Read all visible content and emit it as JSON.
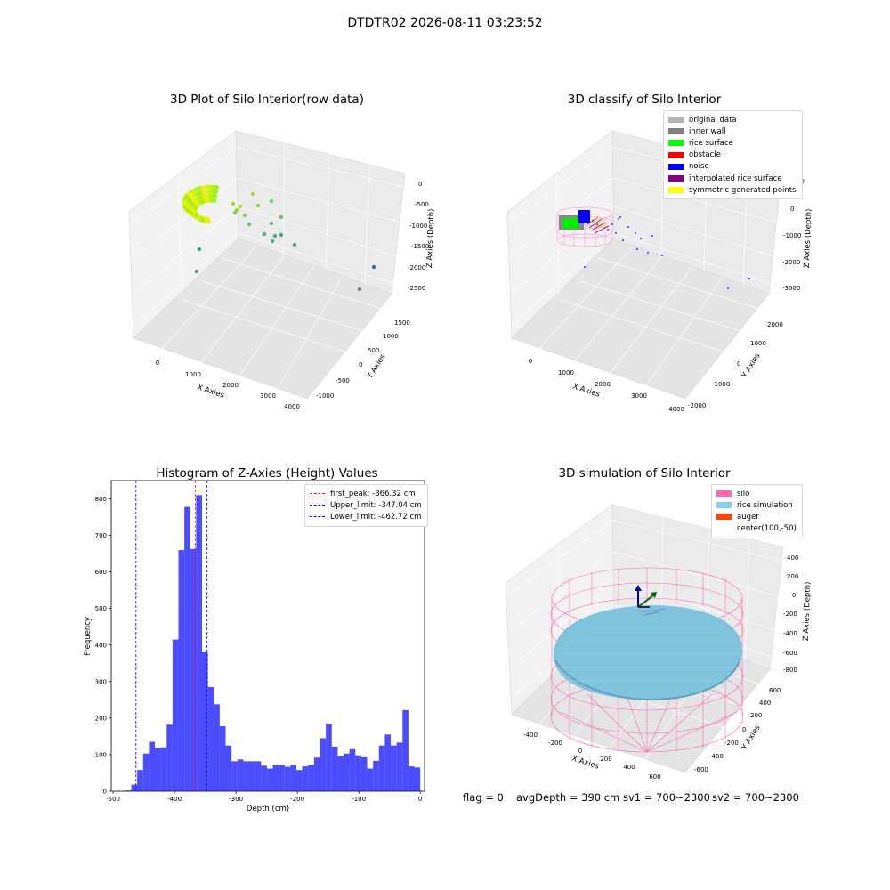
{
  "suptitle": "DTDTR02 2026-08-11 03:23:52",
  "chart_data": [
    {
      "type": "scatter",
      "title": "3D Plot of Silo Interior(row data)",
      "xlabel": "X Axies",
      "ylabel": "Y Axies",
      "zlabel": "Z Axies (Depth)",
      "x_ticks": [
        "0",
        "1000",
        "2000",
        "3000",
        "4000"
      ],
      "y_ticks": [
        "-1000",
        "-500",
        "0",
        "500",
        "1000",
        "1500"
      ],
      "z_ticks": [
        "0",
        "-500",
        "-1000",
        "-1500",
        "-2000",
        "-2500"
      ],
      "colormap": "viridis",
      "points": [
        {
          "x": 700,
          "y": 900,
          "z": -1050
        },
        {
          "x": 1100,
          "y": 1100,
          "z": -700
        },
        {
          "x": 1400,
          "y": 1200,
          "z": -900
        },
        {
          "x": 1600,
          "y": 1300,
          "z": -1100
        },
        {
          "x": 1800,
          "y": 1400,
          "z": -1300
        },
        {
          "x": 2000,
          "y": 1500,
          "z": -1400
        },
        {
          "x": 2200,
          "y": 1600,
          "z": -1500
        },
        {
          "x": 2300,
          "y": 1700,
          "z": -1700
        },
        {
          "x": 300,
          "y": 400,
          "z": -2000
        },
        {
          "x": 500,
          "y": 300,
          "z": -2400
        },
        {
          "x": 3900,
          "y": 900,
          "z": -2000
        },
        {
          "x": 3700,
          "y": 500,
          "z": -2700
        }
      ]
    },
    {
      "type": "scatter",
      "title": "3D classify of Silo Interior",
      "xlabel": "X Axies",
      "ylabel": "Y Axies",
      "zlabel": "Z Axies (Depth)",
      "x_ticks": [
        "0",
        "1000",
        "2000",
        "3000",
        "4000"
      ],
      "y_ticks": [
        "-2000",
        "-1000",
        "0",
        "1000",
        "2000"
      ],
      "z_ticks": [
        "1000",
        "0",
        "-1000",
        "-2000",
        "-3000"
      ],
      "legend": [
        {
          "label": "original data",
          "color": "#b3b3b3"
        },
        {
          "label": "inner wall",
          "color": "#808080"
        },
        {
          "label": "rice surface",
          "color": "#00ff00"
        },
        {
          "label": "obstacle",
          "color": "#ff0000"
        },
        {
          "label": "noise",
          "color": "#0000ff"
        },
        {
          "label": "interpolated rice surface",
          "color": "#800080"
        },
        {
          "label": "symmetric generated points",
          "color": "#ffff00"
        }
      ]
    },
    {
      "type": "bar",
      "title": "Histogram of Z-Axies (Height) Values",
      "xlabel": "Depth (cm)",
      "ylabel": "Frequency",
      "xlim": [
        -503,
        7
      ],
      "ylim": [
        0,
        850
      ],
      "x_ticks": [
        -500,
        -400,
        -300,
        -200,
        -100,
        0
      ],
      "y_ticks": [
        0,
        100,
        200,
        300,
        400,
        500,
        600,
        700,
        800
      ],
      "bin_start": -480,
      "bin_width": 9.6,
      "values": [
        2,
        18,
        58,
        103,
        135,
        118,
        120,
        182,
        415,
        660,
        778,
        663,
        810,
        380,
        285,
        238,
        178,
        125,
        82,
        87,
        82,
        82,
        82,
        70,
        62,
        72,
        72,
        67,
        72,
        58,
        68,
        72,
        92,
        145,
        185,
        122,
        95,
        103,
        115,
        98,
        93,
        62,
        83,
        125,
        155,
        125,
        133,
        222,
        68,
        65
      ],
      "color": "#0000ff",
      "lines": [
        {
          "label": "first_peak: -366.32 cm",
          "x": -366.32,
          "color": "#ff0000"
        },
        {
          "label": "Upper_limit: -347.04 cm",
          "x": -347.04,
          "color": "#0000ff"
        },
        {
          "label": "Lower_limit: -462.72 cm",
          "x": -462.72,
          "color": "#0000ff"
        }
      ]
    },
    {
      "type": "scatter",
      "title": "3D simulation of Silo Interior",
      "xlabel": "X Axies",
      "ylabel": "Y Axies",
      "zlabel": "Z Axies (Depth)",
      "x_ticks": [
        "-400",
        "-200",
        "0",
        "200",
        "400",
        "600"
      ],
      "y_ticks": [
        "-600",
        "-400",
        "-200",
        "0",
        "200",
        "400",
        "600"
      ],
      "z_ticks": [
        "400",
        "200",
        "0",
        "-200",
        "-400",
        "-600",
        "-800"
      ],
      "legend": [
        {
          "label": "silo",
          "color": "#ff69b4"
        },
        {
          "label": "rice simulation",
          "color": "#87ceeb"
        },
        {
          "label": "auger",
          "color": "#ff4500"
        },
        {
          "label": "center(100,-50)",
          "color": ""
        }
      ],
      "center": [
        100,
        -50
      ]
    }
  ],
  "footer": {
    "flag": "flag = 0",
    "avg": "avgDepth = 390 cm",
    "sv1": "sv1 = 700~2300",
    "sv2": "sv2 = 700~2300"
  }
}
